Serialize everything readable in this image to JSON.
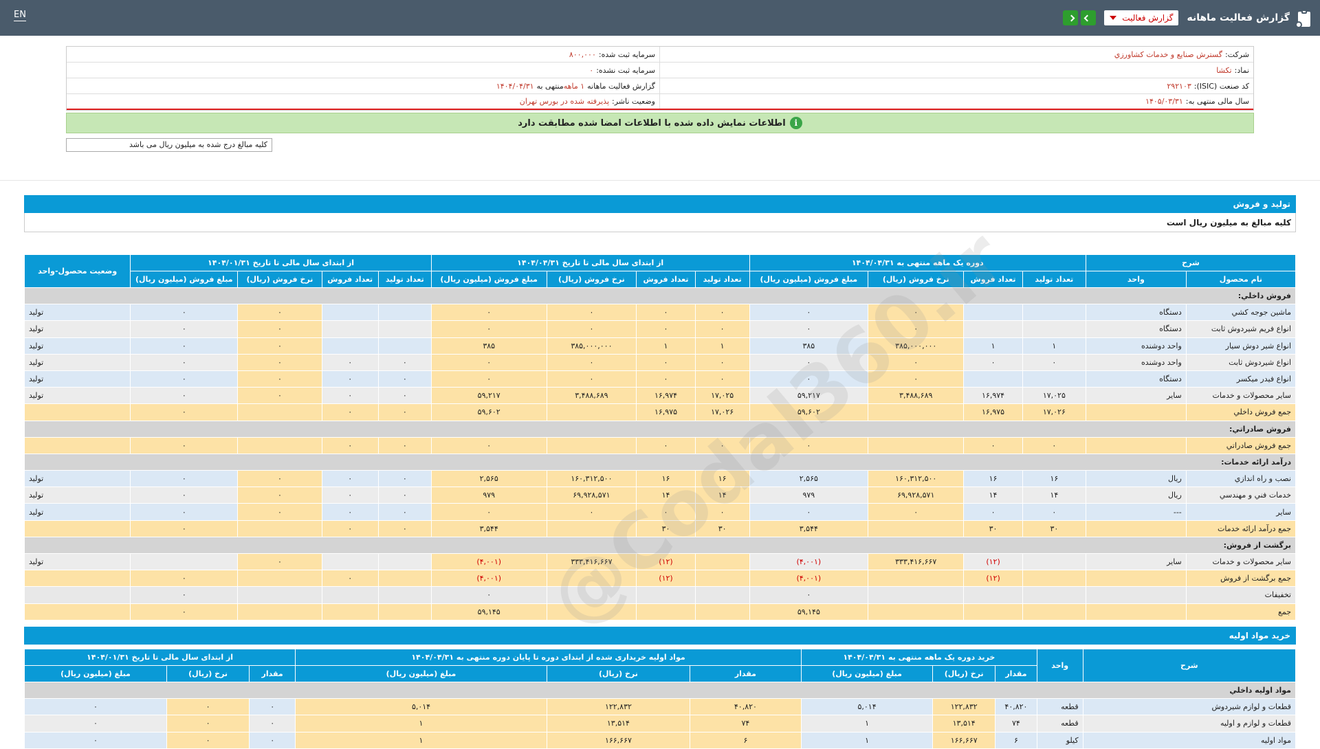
{
  "header": {
    "title": "گزارش فعالیت ماهانه",
    "select_value": "گزارش فعالیت",
    "lang": "EN"
  },
  "info": {
    "company_label": "شرکت:",
    "company": "گسترش صنايع و خدمات کشاورزي",
    "capital_reg_label": "سرمایه ثبت شده:",
    "capital_reg": "۸۰۰,۰۰۰",
    "symbol_label": "نماد:",
    "symbol": "تکشا",
    "capital_unreg_label": "سرمایه ثبت نشده:",
    "capital_unreg": "۰",
    "isic_label": "کد صنعت (ISIC):",
    "isic": "۲۹۲۱۰۳",
    "report_label": "گزارش فعالیت ماهانه",
    "report_value": "۱ ماهه",
    "report_suffix": "منتهی به",
    "report_date": "۱۴۰۴/۰۴/۳۱",
    "fiscal_label": "سال مالی منتهی به:",
    "fiscal": "۱۴۰۵/۰۳/۳۱",
    "status_label": "وضعیت ناشر:",
    "status": "پذیرفته شده در بورس تهران"
  },
  "notice": "اطلاعات نمایش داده شده با اطلاعات امضا شده مطابقت دارد",
  "amounts_note": "کلیه مبالغ درج شده به میلیون ریال می باشد",
  "watermark": "@Codal360.ir",
  "production": {
    "title": "تولید و فروش",
    "note": "کلیه مبالغ به میلیون ریال است",
    "groups": {
      "desc": "شرح",
      "month": "دوره یک ماهه منتهی به ۱۴۰۴/۰۴/۳۱",
      "ytd": "از ابتدای سال مالی تا تاریخ ۱۴۰۴/۰۴/۳۱",
      "prev": "از ابتدای سال مالی تا تاریخ ۱۴۰۴/۰۱/۳۱",
      "status": "وضعیت محصول-واحد"
    },
    "cols": {
      "name": "نام محصول",
      "unit": "واحد",
      "prod": "تعداد تولید",
      "sales": "تعداد فروش",
      "rate": "نرخ فروش (ریال)",
      "amount": "مبلغ فروش (میلیون ریال)"
    },
    "rows": [
      {
        "type": "section",
        "name": "فروش داخلي:"
      },
      {
        "type": "item",
        "name": "ماشين جوجه کشي",
        "unit": "دستگاه",
        "c": [
          "",
          "",
          "۰",
          "۰",
          "۰",
          "۰",
          "۰",
          "۰",
          "",
          "",
          "۰",
          "۰",
          "تولید"
        ]
      },
      {
        "type": "item",
        "name": "انواع فريم شيردوش ثابت",
        "unit": "دستگاه",
        "c": [
          "",
          "",
          "۰",
          "۰",
          "۰",
          "۰",
          "۰",
          "۰",
          "",
          "",
          "۰",
          "۰",
          "تولید"
        ]
      },
      {
        "type": "item",
        "name": "انواع شير دوش سيار",
        "unit": "واحد دوشنده",
        "c": [
          "۱",
          "۱",
          "۳۸۵,۰۰۰,۰۰۰",
          "۳۸۵",
          "۱",
          "۱",
          "۳۸۵,۰۰۰,۰۰۰",
          "۳۸۵",
          "",
          "",
          "۰",
          "۰",
          "تولید"
        ]
      },
      {
        "type": "item",
        "name": "انواع شيردوش ثابت",
        "unit": "واحد دوشنده",
        "c": [
          "۰",
          "۰",
          "۰",
          "۰",
          "۰",
          "۰",
          "۰",
          "۰",
          "۰",
          "۰",
          "۰",
          "۰",
          "تولید"
        ]
      },
      {
        "type": "item",
        "name": "انواع فيدر ميکسر",
        "unit": "دستگاه",
        "c": [
          "",
          "",
          "۰",
          "۰",
          "۰",
          "۰",
          "۰",
          "۰",
          "۰",
          "۰",
          "۰",
          "۰",
          "تولید"
        ]
      },
      {
        "type": "item",
        "name": "ساير محصولات و خدمات",
        "unit": "ساير",
        "c": [
          "۱۷,۰۲۵",
          "۱۶,۹۷۴",
          "۳,۴۸۸,۶۸۹",
          "۵۹,۲۱۷",
          "۱۷,۰۲۵",
          "۱۶,۹۷۴",
          "۳,۴۸۸,۶۸۹",
          "۵۹,۲۱۷",
          "۰",
          "۰",
          "۰",
          "۰",
          "تولید"
        ]
      },
      {
        "type": "total",
        "name": "جمع فروش داخلي",
        "unit": "",
        "c": [
          "۱۷,۰۲۶",
          "۱۶,۹۷۵",
          "",
          "۵۹,۶۰۲",
          "۱۷,۰۲۶",
          "۱۶,۹۷۵",
          "",
          "۵۹,۶۰۲",
          "۰",
          "۰",
          "",
          "۰",
          ""
        ]
      },
      {
        "type": "section",
        "name": "فروش صادراتي:"
      },
      {
        "type": "total",
        "name": "جمع فروش صادراتي",
        "unit": "",
        "c": [
          "۰",
          "۰",
          "",
          "۰",
          "۰",
          "۰",
          "",
          "۰",
          "۰",
          "۰",
          "",
          "۰",
          ""
        ]
      },
      {
        "type": "section",
        "name": "درآمد ارائه خدمات:"
      },
      {
        "type": "item",
        "name": "نصب و راه اندازي",
        "unit": "ريال",
        "c": [
          "۱۶",
          "۱۶",
          "۱۶۰,۳۱۲,۵۰۰",
          "۲,۵۶۵",
          "۱۶",
          "۱۶",
          "۱۶۰,۳۱۲,۵۰۰",
          "۲,۵۶۵",
          "۰",
          "۰",
          "۰",
          "۰",
          "تولید"
        ]
      },
      {
        "type": "item",
        "name": "خدمات فني و مهندسي",
        "unit": "ريال",
        "c": [
          "۱۴",
          "۱۴",
          "۶۹,۹۲۸,۵۷۱",
          "۹۷۹",
          "۱۴",
          "۱۴",
          "۶۹,۹۲۸,۵۷۱",
          "۹۷۹",
          "۰",
          "۰",
          "۰",
          "۰",
          "تولید"
        ]
      },
      {
        "type": "item",
        "name": "ساير",
        "unit": "---",
        "c": [
          "۰",
          "۰",
          "۰",
          "۰",
          "۰",
          "۰",
          "۰",
          "۰",
          "۰",
          "۰",
          "۰",
          "۰",
          "تولید"
        ]
      },
      {
        "type": "total",
        "name": "جمع درآمد ارائه خدمات",
        "unit": "",
        "c": [
          "۳۰",
          "۳۰",
          "",
          "۳,۵۴۴",
          "۳۰",
          "۳۰",
          "",
          "۳,۵۴۴",
          "۰",
          "۰",
          "",
          "۰",
          ""
        ]
      },
      {
        "type": "section",
        "name": "برگشت از فروش:"
      },
      {
        "type": "item",
        "name": "ساير محصولات و خدمات",
        "unit": "ساير",
        "c": [
          "",
          "(۱۲)",
          "۳۳۳,۴۱۶,۶۶۷",
          "(۴,۰۰۱)",
          "",
          "(۱۲)",
          "۳۳۳,۴۱۶,۶۶۷",
          "(۴,۰۰۱)",
          "",
          "",
          "۰",
          "",
          "تولید"
        ]
      },
      {
        "type": "total",
        "name": "جمع برگشت از فروش",
        "unit": "",
        "c": [
          "",
          "(۱۲)",
          "",
          "(۴,۰۰۱)",
          "",
          "(۱۲)",
          "",
          "(۴,۰۰۱)",
          "",
          "۰",
          "",
          "۰",
          ""
        ]
      },
      {
        "type": "blank",
        "name": "تخفيفات",
        "unit": "",
        "c": [
          "",
          "",
          "",
          "۰",
          "",
          "",
          "",
          "۰",
          "",
          "",
          "",
          "۰",
          ""
        ]
      },
      {
        "type": "total",
        "name": "جمع",
        "unit": "",
        "c": [
          "",
          "",
          "",
          "۵۹,۱۴۵",
          "",
          "",
          "",
          "۵۹,۱۴۵",
          "",
          "",
          "",
          "۰",
          ""
        ]
      }
    ]
  },
  "materials": {
    "title": "خرید مواد اولیه",
    "groups": {
      "desc": "شرح",
      "unit": "واحد",
      "month": "خرید دوره یک ماهه منتهی به ۱۴۰۴/۰۴/۳۱",
      "ytd": "مواد اولیه خریداری شده از ابتدای دوره تا پایان دوره منتهی به ۱۴۰۴/۰۴/۳۱",
      "prev": "از ابتدای سال مالی تا تاریخ ۱۴۰۴/۰۱/۳۱"
    },
    "cols": {
      "qty": "مقدار",
      "rate": "نرخ (ریال)",
      "amount": "مبلغ (میلیون ریال)"
    },
    "rows": [
      {
        "type": "section",
        "name": "مواد اوليه داخلي"
      },
      {
        "type": "item",
        "name": "قطعات و لوازم شيردوش",
        "unit": "قطعه",
        "c": [
          "۴۰,۸۲۰",
          "۱۲۲,۸۳۲",
          "۵,۰۱۴",
          "۴۰,۸۲۰",
          "۱۲۲,۸۳۲",
          "۵,۰۱۴",
          "۰",
          "۰",
          "۰"
        ]
      },
      {
        "type": "item",
        "name": "قطعات و لوازم و اوليه",
        "unit": "قطعه",
        "c": [
          "۷۴",
          "۱۳,۵۱۴",
          "۱",
          "۷۴",
          "۱۳,۵۱۴",
          "۱",
          "۰",
          "۰",
          "۰"
        ]
      },
      {
        "type": "item",
        "name": "مواد اوليه",
        "unit": "کيلو",
        "c": [
          "۶",
          "۱۶۶,۶۶۷",
          "۱",
          "۶",
          "۱۶۶,۶۶۷",
          "۱",
          "۰",
          "۰",
          "۰"
        ]
      }
    ]
  }
}
